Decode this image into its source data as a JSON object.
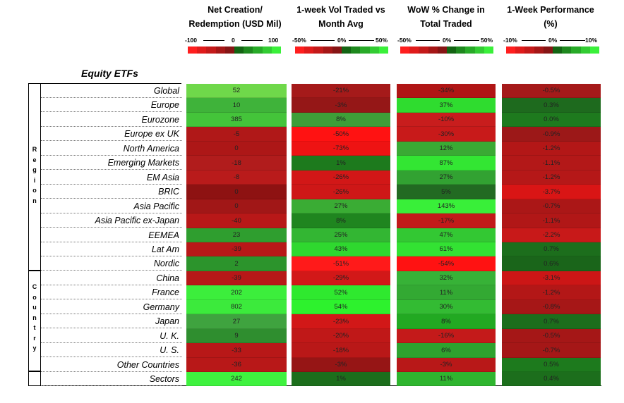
{
  "headers": [
    {
      "line1": "Net Creation/",
      "line2": "Redemption (USD Mil)"
    },
    {
      "line1": "1-week Vol Traded vs",
      "line2": "Month Avg"
    },
    {
      "line1": "WoW % Change in",
      "line2": "Total Traded"
    },
    {
      "line1": "1-Week Performance",
      "line2": "(%)"
    }
  ],
  "scales": [
    {
      "min": "-100",
      "mid": "0",
      "max": "100"
    },
    {
      "min": "-50%",
      "mid": "0%",
      "max": "50%"
    },
    {
      "min": "-50%",
      "mid": "0%",
      "max": "50%"
    },
    {
      "min": "-10%",
      "mid": "0%",
      "max": "10%"
    }
  ],
  "section_title": "Equity ETFs",
  "groups": {
    "region": "Region",
    "country": "Country"
  },
  "rows": [
    {
      "label": "Global",
      "values": [
        "52",
        "-21%",
        "-34%",
        "-0.5%"
      ]
    },
    {
      "label": "Europe",
      "values": [
        "10",
        "-3%",
        "37%",
        "0.3%"
      ]
    },
    {
      "label": "Eurozone",
      "values": [
        "385",
        "8%",
        "-10%",
        "0.0%"
      ]
    },
    {
      "label": "Europe ex UK",
      "values": [
        "-5",
        "-50%",
        "-30%",
        "-0.9%"
      ]
    },
    {
      "label": "North America",
      "values": [
        "0",
        "-73%",
        "12%",
        "-1.2%"
      ]
    },
    {
      "label": "Emerging Markets",
      "values": [
        "-18",
        "1%",
        "87%",
        "-1.1%"
      ]
    },
    {
      "label": "EM Asia",
      "values": [
        "-8",
        "-26%",
        "27%",
        "-1.2%"
      ]
    },
    {
      "label": "BRIC",
      "values": [
        "0",
        "-26%",
        "5%",
        "-3.7%"
      ]
    },
    {
      "label": "Asia Pacific",
      "values": [
        "0",
        "27%",
        "143%",
        "-0.7%"
      ]
    },
    {
      "label": "Asia Pacific ex-Japan",
      "values": [
        "-40",
        "8%",
        "-17%",
        "-1.1%"
      ]
    },
    {
      "label": "EEMEA",
      "values": [
        "23",
        "25%",
        "47%",
        "-2.2%"
      ]
    },
    {
      "label": "Lat Am",
      "values": [
        "-39",
        "43%",
        "61%",
        "0.7%"
      ]
    },
    {
      "label": "Nordic",
      "values": [
        "2",
        "-51%",
        "-54%",
        "0.6%"
      ]
    },
    {
      "label": "China",
      "values": [
        "-39",
        "-29%",
        "32%",
        "-3.1%"
      ]
    },
    {
      "label": "France",
      "values": [
        "202",
        "52%",
        "11%",
        "-1.2%"
      ]
    },
    {
      "label": "Germany",
      "values": [
        "802",
        "54%",
        "30%",
        "-0.8%"
      ]
    },
    {
      "label": "Japan",
      "values": [
        "27",
        "-23%",
        "8%",
        "0.7%"
      ]
    },
    {
      "label": "U. K.",
      "values": [
        "9",
        "-20%",
        "-16%",
        "-0.5%"
      ]
    },
    {
      "label": "U. S.",
      "values": [
        "-33",
        "-18%",
        "6%",
        "-0.7%"
      ]
    },
    {
      "label": "Other Countries",
      "values": [
        "-36",
        "-3%",
        "-3%",
        "0.5%"
      ]
    },
    {
      "label": "Sectors",
      "values": [
        "242",
        "1%",
        "11%",
        "0.4%"
      ]
    }
  ],
  "colors": [
    [
      "#6fd84a",
      "#a51a1a",
      "#b01515",
      "#a51a1a"
    ],
    [
      "#3fb33a",
      "#951717",
      "#2fdc2f",
      "#1e6a1e"
    ],
    [
      "#44c43a",
      "#3e9e38",
      "#c81d1d",
      "#1e7a1e"
    ],
    [
      "#b01818",
      "#ff1212",
      "#c81a1a",
      "#9c1818"
    ],
    [
      "#ad1717",
      "#ee1313",
      "#3aaa34",
      "#b31717"
    ],
    [
      "#b11c1c",
      "#1d7a1d",
      "#33e633",
      "#b31818"
    ],
    [
      "#b91b1b",
      "#d21717",
      "#32a232",
      "#b51818"
    ],
    [
      "#8e1212",
      "#ce1717",
      "#226a22",
      "#d91515"
    ],
    [
      "#a11717",
      "#3aac34",
      "#39ef39",
      "#ab1717"
    ],
    [
      "#b81818",
      "#1f851f",
      "#c21a1a",
      "#b11717"
    ],
    [
      "#2f9e2f",
      "#33b633",
      "#33c833",
      "#c81919"
    ],
    [
      "#b81818",
      "#2fd82f",
      "#33e233",
      "#1c6e1c"
    ],
    [
      "#2c942c",
      "#ff1a1a",
      "#ff1212",
      "#1a651a"
    ],
    [
      "#b71818",
      "#d21818",
      "#37b237",
      "#cc1616"
    ],
    [
      "#3cee3c",
      "#2fe92f",
      "#33a933",
      "#b31717"
    ],
    [
      "#3cea3c",
      "#2df22d",
      "#33bb33",
      "#a61717"
    ],
    [
      "#3fa33f",
      "#d21818",
      "#22a922",
      "#1c6e1c"
    ],
    [
      "#2f8e2f",
      "#c01818",
      "#c41a1a",
      "#a51717"
    ],
    [
      "#b81818",
      "#b91818",
      "#2ea22e",
      "#a51717"
    ],
    [
      "#b81818",
      "#961515",
      "#b81818",
      "#1d7a1d"
    ],
    [
      "#3ff23f",
      "#1c6e1c",
      "#2fb52f",
      "#1c6e1c"
    ]
  ],
  "scale_colors": [
    "#ff1e1e",
    "#e01b1b",
    "#c41a1a",
    "#a51717",
    "#861515",
    "#136413",
    "#1e881e",
    "#28aa28",
    "#33cc33",
    "#3af03a"
  ]
}
